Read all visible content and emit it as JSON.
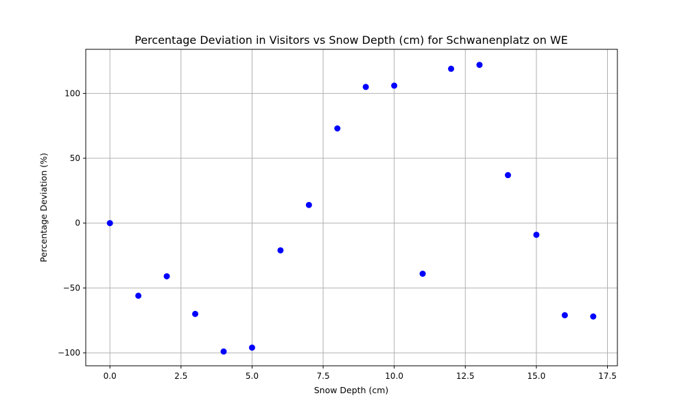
{
  "chart_data": {
    "type": "scatter",
    "title": "Percentage Deviation in Visitors vs Snow Depth (cm) for Schwanenplatz on WE",
    "xlabel": "Snow Depth (cm)",
    "ylabel": "Percentage Deviation (%)",
    "xlim": [
      -0.85,
      17.85
    ],
    "ylim": [
      -110,
      134
    ],
    "grid": true,
    "x_ticks": [
      0,
      2.5,
      5,
      7.5,
      10,
      12.5,
      15,
      17.5
    ],
    "x_tick_labels": [
      "0.0",
      "2.5",
      "5.0",
      "7.5",
      "10.0",
      "12.5",
      "15.0",
      "17.5"
    ],
    "y_ticks": [
      -100,
      -50,
      0,
      50,
      100
    ],
    "y_tick_labels": [
      "−100",
      "−50",
      "0",
      "50",
      "100"
    ],
    "point_color": "#0000ff",
    "points": [
      {
        "x": 0,
        "y": 0
      },
      {
        "x": 1,
        "y": -56
      },
      {
        "x": 2,
        "y": -41
      },
      {
        "x": 3,
        "y": -70
      },
      {
        "x": 4,
        "y": -99
      },
      {
        "x": 5,
        "y": -96
      },
      {
        "x": 6,
        "y": -21
      },
      {
        "x": 7,
        "y": 14
      },
      {
        "x": 8,
        "y": 73
      },
      {
        "x": 9,
        "y": 105
      },
      {
        "x": 10,
        "y": 106
      },
      {
        "x": 11,
        "y": -39
      },
      {
        "x": 12,
        "y": 119
      },
      {
        "x": 13,
        "y": 122
      },
      {
        "x": 14,
        "y": 37
      },
      {
        "x": 15,
        "y": -9
      },
      {
        "x": 16,
        "y": -71
      },
      {
        "x": 17,
        "y": -72
      }
    ]
  }
}
